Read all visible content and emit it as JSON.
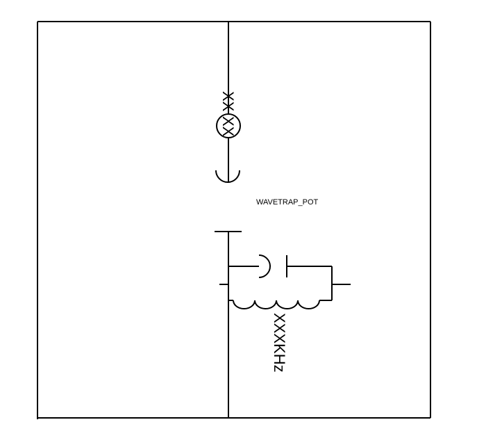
{
  "diagram": {
    "title_label": "WAVETRAP_POT",
    "top_device_label": "XX",
    "lamp_label": "XX",
    "frequency_label": "XXXKHz"
  },
  "colors": {
    "line": "#000000",
    "background": "#ffffff"
  }
}
